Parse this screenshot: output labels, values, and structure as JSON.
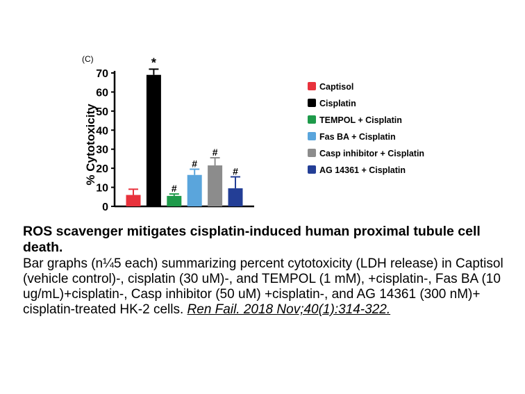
{
  "chart_data": {
    "type": "bar",
    "panel_label": "(C)",
    "ylabel": "% Cytotoxicity",
    "ylim": [
      0,
      70
    ],
    "yticks": [
      0,
      10,
      20,
      30,
      40,
      50,
      60,
      70
    ],
    "categories": [
      "Captisol",
      "Cisplatin",
      "TEMPOL + Cisplatin",
      "Fas BA + Cisplatin",
      "Casp inhibitor + Cisplatin",
      "AG 14361 + Cisplatin"
    ],
    "values": [
      6,
      69,
      5.5,
      16.5,
      21.5,
      9.5
    ],
    "errors": [
      3,
      3,
      1,
      3,
      4,
      6
    ],
    "annotations": [
      "",
      "*",
      "#",
      "#",
      "#",
      "#"
    ],
    "colors": [
      "#e8323c",
      "#000000",
      "#1e9a4a",
      "#5aa5dc",
      "#8c8c8c",
      "#233e96"
    ],
    "legend_position": "right"
  },
  "caption": {
    "title": "ROS scavenger mitigates cisplatin-induced human proximal tubule cell death.",
    "body": "Bar graphs (n¼5 each) summarizing percent cytotoxicity (LDH release) in Captisol (vehicle control)-, cisplatin (30 uM)-, and TEMPOL (1 mM), +cisplatin-, Fas BA (10 ug/mL)+cisplatin-, Casp inhibitor (50 uM) +cisplatin-, and AG 14361 (300 nM)+ cisplatin-treated HK-2 cells.",
    "reference": "Ren Fail. 2018 Nov;40(1):314-322."
  }
}
